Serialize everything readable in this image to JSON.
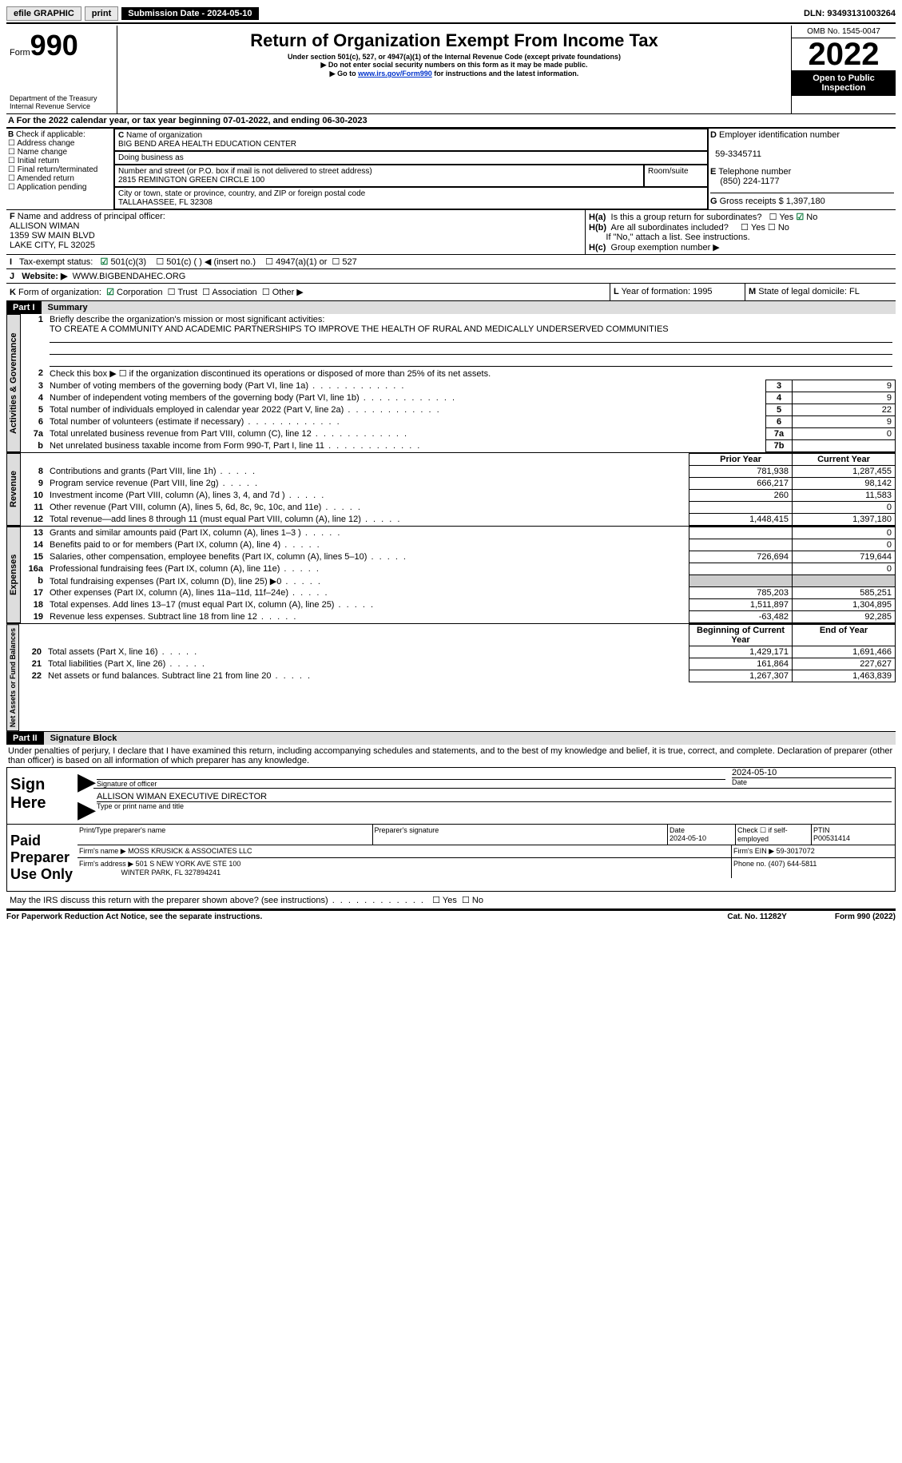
{
  "topbar": {
    "efile": "efile GRAPHIC",
    "print": "print",
    "subdate_label": "Submission Date - 2024-05-10",
    "dln": "DLN: 93493131003264"
  },
  "header": {
    "form_word": "Form",
    "form_num": "990",
    "dept1": "Department of the Treasury",
    "dept2": "Internal Revenue Service",
    "title": "Return of Organization Exempt From Income Tax",
    "sub1": "Under section 501(c), 527, or 4947(a)(1) of the Internal Revenue Code (except private foundations)",
    "sub2": "▶ Do not enter social security numbers on this form as it may be made public.",
    "sub3_pre": "▶ Go to ",
    "sub3_link": "www.irs.gov/Form990",
    "sub3_post": " for instructions and the latest information.",
    "omb": "OMB No. 1545-0047",
    "year": "2022",
    "open": "Open to Public Inspection"
  },
  "A": {
    "text_pre": "For the 2022 calendar year, or tax year beginning ",
    "begin": "07-01-2022",
    "mid": ", and ending ",
    "end": "06-30-2023"
  },
  "B": {
    "label": "Check if applicable:",
    "items": [
      "Address change",
      "Name change",
      "Initial return",
      "Final return/terminated",
      "Amended return",
      "Application pending"
    ]
  },
  "C": {
    "name_label": "Name of organization",
    "name": "BIG BEND AREA HEALTH EDUCATION CENTER",
    "dba_label": "Doing business as",
    "street_label": "Number and street (or P.O. box if mail is not delivered to street address)",
    "street": "2815 REMINGTON GREEN CIRCLE 100",
    "room_label": "Room/suite",
    "city_label": "City or town, state or province, country, and ZIP or foreign postal code",
    "city": "TALLAHASSEE, FL  32308"
  },
  "D": {
    "label": "Employer identification number",
    "val": "59-3345711"
  },
  "E": {
    "label": "Telephone number",
    "val": "(850) 224-1177"
  },
  "G": {
    "label": "Gross receipts $",
    "val": "1,397,180"
  },
  "F": {
    "label": "Name and address of principal officer:",
    "name": "ALLISON WIMAN",
    "addr1": "1359 SW MAIN BLVD",
    "addr2": "LAKE CITY, FL  32025"
  },
  "H": {
    "a": "Is this a group return for subordinates?",
    "b": "Are all subordinates included?",
    "b_note": "If \"No,\" attach a list. See instructions.",
    "c": "Group exemption number ▶"
  },
  "I": {
    "label": "Tax-exempt status:",
    "o1": "501(c)(3)",
    "o2": "501(c) (  ) ◀ (insert no.)",
    "o3": "4947(a)(1) or",
    "o4": "527"
  },
  "J": {
    "label": "Website: ▶",
    "val": "WWW.BIGBENDAHEC.ORG"
  },
  "K": {
    "label": "Form of organization:",
    "o1": "Corporation",
    "o2": "Trust",
    "o3": "Association",
    "o4": "Other ▶"
  },
  "L": {
    "label": "Year of formation:",
    "val": "1995"
  },
  "M": {
    "label": "State of legal domicile:",
    "val": "FL"
  },
  "part1": {
    "hdr": "Part I",
    "title": "Summary",
    "line1_label": "Briefly describe the organization's mission or most significant activities:",
    "line1_val": "TO CREATE A COMMUNITY AND ACADEMIC PARTNERSHIPS TO IMPROVE THE HEALTH OF RURAL AND MEDICALLY UNDERSERVED COMMUNITIES",
    "line2": "Check this box ▶ ☐ if the organization discontinued its operations or disposed of more than 25% of its net assets.",
    "tabs": {
      "act": "Activities & Governance",
      "rev": "Revenue",
      "exp": "Expenses",
      "net": "Net Assets or Fund Balances"
    },
    "col_prior": "Prior Year",
    "col_curr": "Current Year",
    "col_bcy": "Beginning of Current Year",
    "col_eoy": "End of Year",
    "rows_gov": [
      {
        "n": "3",
        "d": "Number of voting members of the governing body (Part VI, line 1a)",
        "box": "3",
        "v": "9"
      },
      {
        "n": "4",
        "d": "Number of independent voting members of the governing body (Part VI, line 1b)",
        "box": "4",
        "v": "9"
      },
      {
        "n": "5",
        "d": "Total number of individuals employed in calendar year 2022 (Part V, line 2a)",
        "box": "5",
        "v": "22"
      },
      {
        "n": "6",
        "d": "Total number of volunteers (estimate if necessary)",
        "box": "6",
        "v": "9"
      },
      {
        "n": "7a",
        "d": "Total unrelated business revenue from Part VIII, column (C), line 12",
        "box": "7a",
        "v": "0"
      },
      {
        "n": "b",
        "d": "Net unrelated business taxable income from Form 990-T, Part I, line 11",
        "box": "7b",
        "v": ""
      }
    ],
    "rows_rev": [
      {
        "n": "8",
        "d": "Contributions and grants (Part VIII, line 1h)",
        "p": "781,938",
        "c": "1,287,455"
      },
      {
        "n": "9",
        "d": "Program service revenue (Part VIII, line 2g)",
        "p": "666,217",
        "c": "98,142"
      },
      {
        "n": "10",
        "d": "Investment income (Part VIII, column (A), lines 3, 4, and 7d )",
        "p": "260",
        "c": "11,583"
      },
      {
        "n": "11",
        "d": "Other revenue (Part VIII, column (A), lines 5, 6d, 8c, 9c, 10c, and 11e)",
        "p": "",
        "c": "0"
      },
      {
        "n": "12",
        "d": "Total revenue—add lines 8 through 11 (must equal Part VIII, column (A), line 12)",
        "p": "1,448,415",
        "c": "1,397,180"
      }
    ],
    "rows_exp": [
      {
        "n": "13",
        "d": "Grants and similar amounts paid (Part IX, column (A), lines 1–3 )",
        "p": "",
        "c": "0"
      },
      {
        "n": "14",
        "d": "Benefits paid to or for members (Part IX, column (A), line 4)",
        "p": "",
        "c": "0"
      },
      {
        "n": "15",
        "d": "Salaries, other compensation, employee benefits (Part IX, column (A), lines 5–10)",
        "p": "726,694",
        "c": "719,644"
      },
      {
        "n": "16a",
        "d": "Professional fundraising fees (Part IX, column (A), line 11e)",
        "p": "",
        "c": "0"
      },
      {
        "n": "b",
        "d": "Total fundraising expenses (Part IX, column (D), line 25) ▶0",
        "p": "GRAY",
        "c": "GRAY"
      },
      {
        "n": "17",
        "d": "Other expenses (Part IX, column (A), lines 11a–11d, 11f–24e)",
        "p": "785,203",
        "c": "585,251"
      },
      {
        "n": "18",
        "d": "Total expenses. Add lines 13–17 (must equal Part IX, column (A), line 25)",
        "p": "1,511,897",
        "c": "1,304,895"
      },
      {
        "n": "19",
        "d": "Revenue less expenses. Subtract line 18 from line 12",
        "p": "-63,482",
        "c": "92,285"
      }
    ],
    "rows_net": [
      {
        "n": "20",
        "d": "Total assets (Part X, line 16)",
        "p": "1,429,171",
        "c": "1,691,466"
      },
      {
        "n": "21",
        "d": "Total liabilities (Part X, line 26)",
        "p": "161,864",
        "c": "227,627"
      },
      {
        "n": "22",
        "d": "Net assets or fund balances. Subtract line 21 from line 20",
        "p": "1,267,307",
        "c": "1,463,839"
      }
    ]
  },
  "part2": {
    "hdr": "Part II",
    "title": "Signature Block",
    "decl": "Under penalties of perjury, I declare that I have examined this return, including accompanying schedules and statements, and to the best of my knowledge and belief, it is true, correct, and complete. Declaration of preparer (other than officer) is based on all information of which preparer has any knowledge."
  },
  "sign": {
    "here": "Sign Here",
    "sig_label": "Signature of officer",
    "date": "2024-05-10",
    "date_label": "Date",
    "name": "ALLISON WIMAN  EXECUTIVE DIRECTOR",
    "name_label": "Type or print name and title"
  },
  "paid": {
    "label": "Paid Preparer Use Only",
    "c1": "Print/Type preparer's name",
    "c2": "Preparer's signature",
    "c3_label": "Date",
    "c3": "2024-05-10",
    "c4": "Check ☐ if self-employed",
    "c5_label": "PTIN",
    "c5": "P00531414",
    "firm_label": "Firm's name    ▶",
    "firm": "MOSS KRUSICK & ASSOCIATES LLC",
    "ein_label": "Firm's EIN ▶",
    "ein": "59-3017072",
    "addr_label": "Firm's address ▶",
    "addr1": "501 S NEW YORK AVE STE 100",
    "addr2": "WINTER PARK, FL  327894241",
    "phone_label": "Phone no.",
    "phone": "(407) 644-5811"
  },
  "discuss": "May the IRS discuss this return with the preparer shown above? (see instructions)",
  "footer": {
    "left": "For Paperwork Reduction Act Notice, see the separate instructions.",
    "mid": "Cat. No. 11282Y",
    "right": "Form 990 (2022)"
  },
  "yesno": {
    "yes": "Yes",
    "no": "No"
  }
}
